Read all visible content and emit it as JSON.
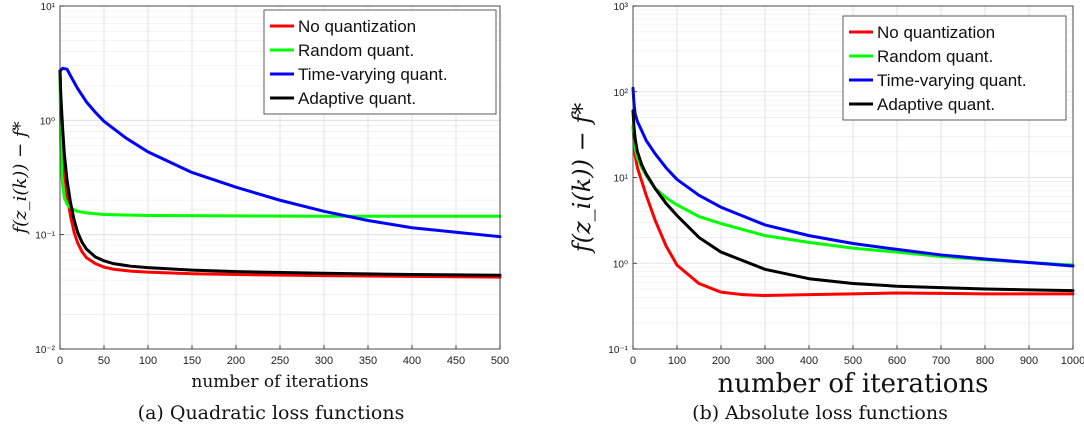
{
  "captions": {
    "a": "(a) Quadratic loss functions",
    "b": "(b) Absolute loss functions"
  },
  "chart_data": [
    {
      "type": "line",
      "xlabel": "number of iterations",
      "ylabel": "f(z_i(k)) − f*",
      "xscale": "linear",
      "yscale": "log",
      "xlim": [
        0,
        500
      ],
      "ylim": [
        0.01,
        10
      ],
      "xticks": [
        0,
        50,
        100,
        150,
        200,
        250,
        300,
        350,
        400,
        450,
        500
      ],
      "yticks": [
        0.01,
        0.1,
        1,
        10
      ],
      "ytick_labels": [
        "10⁻²",
        "10⁻¹",
        "10⁰",
        "10¹"
      ],
      "grid": true,
      "legend_position": "top-right",
      "series": [
        {
          "name": "No quantization",
          "color": "#ff0000",
          "x": [
            0,
            1,
            3,
            5,
            8,
            12,
            16,
            20,
            25,
            30,
            40,
            50,
            60,
            80,
            100,
            150,
            200,
            300,
            400,
            500
          ],
          "y": [
            2.7,
            1.3,
            0.6,
            0.35,
            0.22,
            0.145,
            0.105,
            0.085,
            0.071,
            0.063,
            0.056,
            0.052,
            0.05,
            0.048,
            0.047,
            0.0455,
            0.0448,
            0.0438,
            0.0432,
            0.0425
          ]
        },
        {
          "name": "Random quant.",
          "color": "#00ff00",
          "x": [
            0,
            1,
            2,
            3,
            5,
            8,
            12,
            16,
            20,
            30,
            50,
            100,
            200,
            300,
            400,
            500
          ],
          "y": [
            2.7,
            0.55,
            0.35,
            0.27,
            0.21,
            0.185,
            0.172,
            0.165,
            0.16,
            0.155,
            0.15,
            0.147,
            0.146,
            0.145,
            0.145,
            0.145
          ]
        },
        {
          "name": "Time-varying quant.",
          "color": "#0000ff",
          "x": [
            0,
            3,
            8,
            12,
            20,
            30,
            40,
            50,
            75,
            100,
            150,
            200,
            250,
            300,
            350,
            400,
            450,
            500
          ],
          "y": [
            2.7,
            2.85,
            2.8,
            2.45,
            1.9,
            1.45,
            1.18,
            0.98,
            0.7,
            0.53,
            0.35,
            0.26,
            0.2,
            0.16,
            0.133,
            0.115,
            0.105,
            0.096
          ]
        },
        {
          "name": "Adaptive quant.",
          "color": "#000000",
          "x": [
            0,
            1,
            3,
            5,
            8,
            12,
            16,
            20,
            25,
            30,
            40,
            50,
            60,
            80,
            100,
            150,
            200,
            300,
            400,
            500
          ],
          "y": [
            2.7,
            1.6,
            0.85,
            0.5,
            0.3,
            0.19,
            0.135,
            0.105,
            0.086,
            0.075,
            0.064,
            0.059,
            0.056,
            0.053,
            0.0515,
            0.049,
            0.0475,
            0.046,
            0.0448,
            0.0442
          ]
        }
      ]
    },
    {
      "type": "line",
      "xlabel": "number of iterations",
      "ylabel": "f(z_i(k)) − f*",
      "xscale": "linear",
      "yscale": "log",
      "xlim": [
        0,
        1000
      ],
      "ylim": [
        0.1,
        1000
      ],
      "xticks": [
        0,
        100,
        200,
        300,
        400,
        500,
        600,
        700,
        800,
        900,
        1000
      ],
      "yticks": [
        0.1,
        1,
        10,
        100,
        1000
      ],
      "ytick_labels": [
        "10⁻¹",
        "10⁰",
        "10¹",
        "10²",
        "10³"
      ],
      "grid": true,
      "legend_position": "top-right",
      "series": [
        {
          "name": "No quantization",
          "color": "#ff0000",
          "x": [
            0,
            2,
            5,
            10,
            20,
            30,
            50,
            75,
            100,
            150,
            200,
            250,
            300,
            400,
            500,
            600,
            700,
            800,
            900,
            1000
          ],
          "y": [
            40,
            28,
            18,
            13,
            9,
            6.2,
            3.2,
            1.6,
            0.95,
            0.58,
            0.46,
            0.43,
            0.42,
            0.43,
            0.44,
            0.45,
            0.445,
            0.44,
            0.44,
            0.44
          ]
        },
        {
          "name": "Random quant.",
          "color": "#00ff00",
          "x": [
            0,
            2,
            5,
            10,
            20,
            30,
            50,
            75,
            100,
            150,
            200,
            300,
            400,
            500,
            600,
            700,
            800,
            900,
            1000
          ],
          "y": [
            40,
            30,
            22,
            17,
            13,
            10.5,
            7.5,
            5.8,
            4.8,
            3.5,
            2.9,
            2.1,
            1.75,
            1.5,
            1.35,
            1.2,
            1.1,
            1.02,
            0.95
          ]
        },
        {
          "name": "Time-varying quant.",
          "color": "#0000ff",
          "x": [
            0,
            2,
            5,
            10,
            20,
            30,
            50,
            75,
            100,
            150,
            200,
            300,
            400,
            500,
            600,
            700,
            800,
            900,
            1000
          ],
          "y": [
            110,
            75,
            55,
            45,
            35,
            27,
            19,
            13,
            9.5,
            6.2,
            4.5,
            2.8,
            2.1,
            1.7,
            1.45,
            1.25,
            1.12,
            1.02,
            0.93
          ]
        },
        {
          "name": "Adaptive quant.",
          "color": "#000000",
          "x": [
            0,
            2,
            5,
            10,
            20,
            30,
            50,
            75,
            100,
            150,
            200,
            300,
            400,
            500,
            600,
            700,
            800,
            900,
            1000
          ],
          "y": [
            60,
            40,
            28,
            20,
            14,
            11,
            7.5,
            5,
            3.6,
            2,
            1.35,
            0.85,
            0.66,
            0.58,
            0.54,
            0.52,
            0.5,
            0.49,
            0.48
          ]
        }
      ]
    }
  ]
}
